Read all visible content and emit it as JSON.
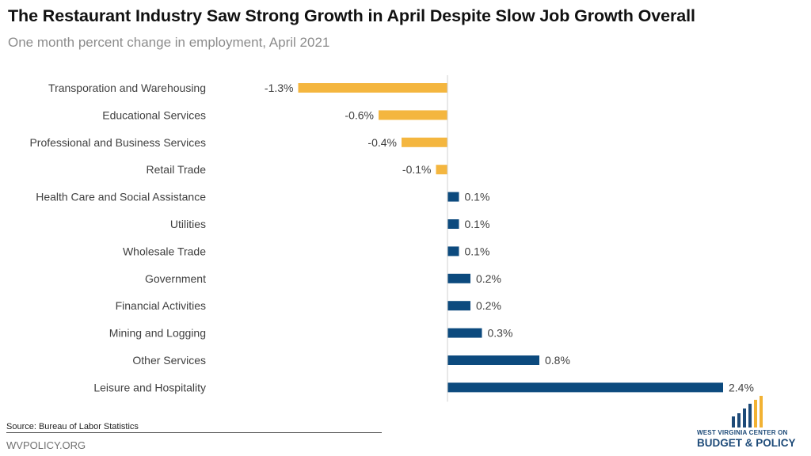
{
  "header": {
    "title": "The Restaurant Industry Saw Strong Growth in April Despite Slow Job Growth Overall",
    "subtitle": "One month percent change in employment, April 2021"
  },
  "footer": {
    "source": "Source: Bureau of Labor Statistics",
    "site": "WVPOLICY.ORG"
  },
  "logo": {
    "line1": "WEST VIRGINIA CENTER ON",
    "line2": "BUDGET & POLICY",
    "colors": {
      "navy": "#1d4a78",
      "gold": "#f2b233"
    }
  },
  "colors": {
    "negative": "#f4b63f",
    "positive": "#0c4a7e",
    "axis": "#d0d0d0"
  },
  "chart_data": {
    "type": "bar",
    "orientation": "horizontal",
    "title": "The Restaurant Industry Saw Strong Growth in April Despite Slow Job Growth Overall",
    "subtitle": "One month percent change in employment, April 2021",
    "categories": [
      "Transporation and Warehousing",
      "Educational Services",
      "Professional and Business Services",
      "Retail Trade",
      "Health Care and Social Assistance",
      "Utilities",
      "Wholesale Trade",
      "Government",
      "Financial Activities",
      "Mining and Logging",
      "Other Services",
      "Leisure and Hospitality"
    ],
    "values": [
      -1.3,
      -0.6,
      -0.4,
      -0.1,
      0.1,
      0.1,
      0.1,
      0.2,
      0.2,
      0.3,
      0.8,
      2.4
    ],
    "value_labels": [
      "-1.3%",
      "-0.6%",
      "-0.4%",
      "-0.1%",
      "0.1%",
      "0.1%",
      "0.1%",
      "0.2%",
      "0.2%",
      "0.3%",
      "0.8%",
      "2.4%"
    ],
    "xlim": [
      -1.3,
      2.4
    ],
    "grid": false,
    "legend": "none"
  }
}
